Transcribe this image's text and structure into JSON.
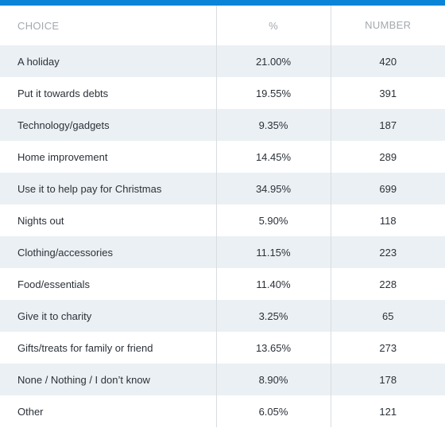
{
  "table": {
    "headers": {
      "choice": "CHOICE",
      "percent": "%",
      "number": "NUMBER"
    },
    "rows": [
      {
        "choice": "A holiday",
        "percent": "21.00%",
        "number": "420"
      },
      {
        "choice": "Put it towards debts",
        "percent": "19.55%",
        "number": "391"
      },
      {
        "choice": "Technology/gadgets",
        "percent": "9.35%",
        "number": "187"
      },
      {
        "choice": "Home improvement",
        "percent": "14.45%",
        "number": "289"
      },
      {
        "choice": "Use it to help pay for Christmas",
        "percent": "34.95%",
        "number": "699"
      },
      {
        "choice": "Nights out",
        "percent": "5.90%",
        "number": "118"
      },
      {
        "choice": "Clothing/accessories",
        "percent": "11.15%",
        "number": "223"
      },
      {
        "choice": "Food/essentials",
        "percent": "11.40%",
        "number": "228"
      },
      {
        "choice": "Give it to charity",
        "percent": "3.25%",
        "number": "65"
      },
      {
        "choice": "Gifts/treats for family or friend",
        "percent": "13.65%",
        "number": "273"
      },
      {
        "choice": "None / Nothing / I don’t know",
        "percent": "8.90%",
        "number": "178"
      },
      {
        "choice": "Other",
        "percent": "6.05%",
        "number": "121"
      }
    ]
  },
  "colors": {
    "accent_bar": "#0a84d6",
    "row_shade": "#ebf0f4",
    "header_text": "#a3a9b0",
    "body_text": "#2b3138",
    "divider": "#d8dde2"
  }
}
